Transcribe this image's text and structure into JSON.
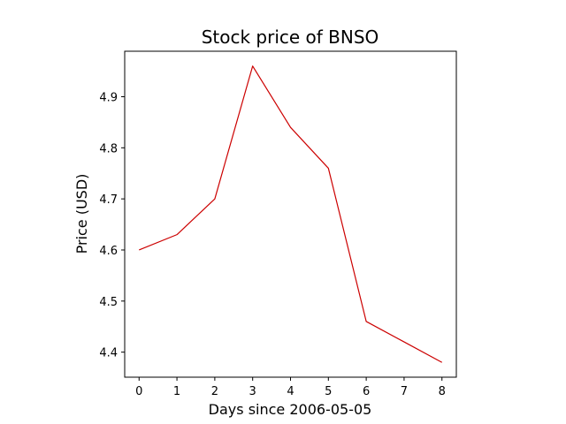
{
  "chart_data": {
    "type": "line",
    "title": "Stock price of BNSO",
    "xlabel": "Days since 2006-05-05",
    "ylabel": "Price (USD)",
    "x": [
      0,
      1,
      2,
      3,
      4,
      5,
      6,
      7,
      8
    ],
    "series": [
      {
        "values": [
          4.6,
          4.63,
          4.7,
          4.96,
          4.84,
          4.76,
          4.46,
          4.42,
          4.38
        ],
        "color": "#cc0000"
      }
    ],
    "xlim": [
      -0.38,
      8.38
    ],
    "ylim": [
      4.351,
      4.989
    ],
    "xticks": [
      0,
      1,
      2,
      3,
      4,
      5,
      6,
      7,
      8
    ],
    "yticks": [
      4.4,
      4.5,
      4.6,
      4.7,
      4.8,
      4.9
    ],
    "ytick_labels": [
      "4.4",
      "4.5",
      "4.6",
      "4.7",
      "4.8",
      "4.9"
    ],
    "grid": false,
    "legend": false
  }
}
